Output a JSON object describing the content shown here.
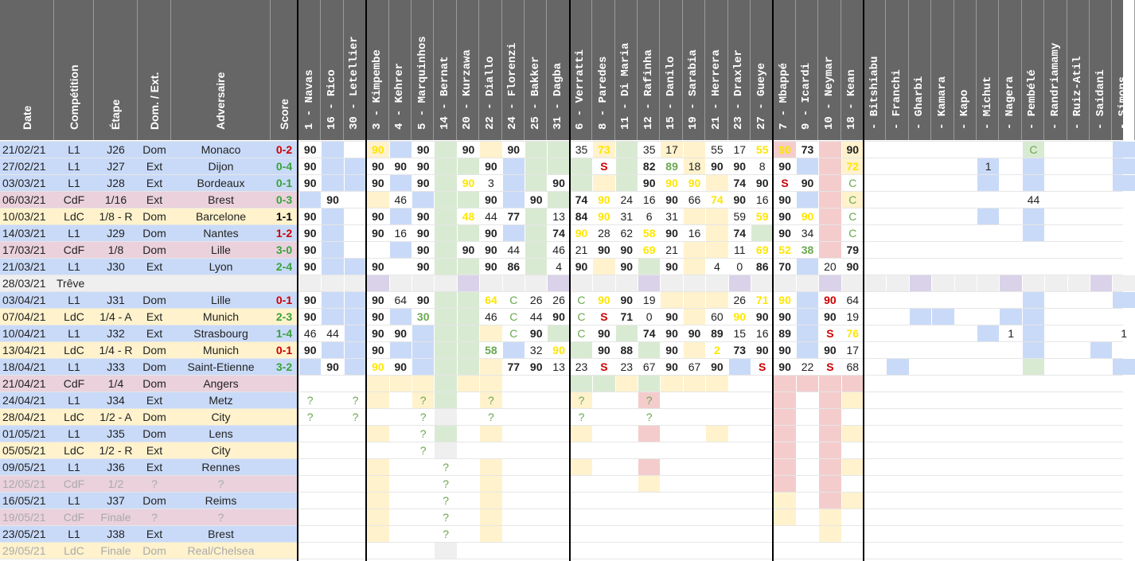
{
  "colors": {
    "header_bg": "#666666",
    "L1": "#c9daf8",
    "CdF": "#ead1dc",
    "LdC": "#fff2cc",
    "truce": "#efefef",
    "pos_blue": "#c9daf8",
    "pos_green": "#d9ead3",
    "pos_yellow": "#fff2cc",
    "pos_red": "#f4cccc",
    "pos_purple": "#d9d2e9",
    "score_win": "#38a33a",
    "score_loss": "#cc0000",
    "score_draw": "#000000",
    "min_yellow": "#ffe600",
    "min_green": "#6aa84f",
    "sub_red": "#cc0000",
    "future_grey": "#aaaaaa"
  },
  "columns": {
    "date": "Date",
    "competition": "Compétition",
    "stage": "Étape",
    "venue": "Dom. / Ext.",
    "opponent": "Adversaire",
    "score": "Score"
  },
  "players": [
    {
      "label": "1 - Navas",
      "group": "blue"
    },
    {
      "label": "16 - Rico",
      "group": "blue"
    },
    {
      "label": "30 - Letellier",
      "group": "blue"
    },
    {
      "label": "3 - Kimpembe",
      "group": "yellow"
    },
    {
      "label": "4 - Kehrer",
      "group": "blue"
    },
    {
      "label": "5 - Marquinhos",
      "group": "blue"
    },
    {
      "label": "14 - Bernat",
      "group": "green"
    },
    {
      "label": "20 - Kurzawa",
      "group": "green"
    },
    {
      "label": "22 - Diallo",
      "group": "yellow"
    },
    {
      "label": "24 - Florenzi",
      "group": "blue"
    },
    {
      "label": "25 - Bakker",
      "group": "green"
    },
    {
      "label": "31 - Dagba",
      "group": "green"
    },
    {
      "label": "6 - Verratti",
      "group": "green"
    },
    {
      "label": "8 - Paredes",
      "group": "yellow"
    },
    {
      "label": "11 - Di Maria",
      "group": "green"
    },
    {
      "label": "12 - Rafinha",
      "group": "green"
    },
    {
      "label": "15 - Danilo",
      "group": "yellow"
    },
    {
      "label": "19 - Sarabia",
      "group": "yellow"
    },
    {
      "label": "21 - Herrera",
      "group": "yellow"
    },
    {
      "label": "23 - Draxler",
      "group": "blue"
    },
    {
      "label": "27 - Gueye",
      "group": "green"
    },
    {
      "label": "7 - Mbappé",
      "group": "red"
    },
    {
      "label": "9 - Icardi",
      "group": "blue"
    },
    {
      "label": "10 - Neymar",
      "group": "red"
    },
    {
      "label": "18 - Kean",
      "group": "yellow"
    },
    {
      "label": "- Bitshiabu",
      "group": "blue"
    },
    {
      "label": "- Franchi",
      "group": "blue"
    },
    {
      "label": "- Gharbi",
      "group": "blue"
    },
    {
      "label": "- Kamara",
      "group": "blue"
    },
    {
      "label": "- Kapo",
      "group": "blue"
    },
    {
      "label": "- Michut",
      "group": "blue"
    },
    {
      "label": "- Nagera",
      "group": "blue"
    },
    {
      "label": "- Pembélé",
      "group": "green"
    },
    {
      "label": "- Randriamamy",
      "group": "blue"
    },
    {
      "label": "- Ruiz-Atil",
      "group": "blue"
    },
    {
      "label": "- Saidani",
      "group": "blue"
    },
    {
      "label": "- Simons",
      "group": "blue"
    }
  ],
  "matches": [
    {
      "date": "21/02/21",
      "comp": "L1",
      "stage": "J26",
      "venue": "Dom",
      "opp": "Monaco",
      "score": "0-2",
      "result": "loss",
      "future": false,
      "cells": {
        "0": "90",
        "3": "90y",
        "5": "90",
        "7": "90",
        "9": "90",
        "12": "35",
        "13": "73y",
        "15": "35",
        "16": "17",
        "18": "55",
        "19": "17",
        "20": "55y",
        "21": "90y",
        "22": "73",
        "24": "90",
        "32": "Cg"
      },
      "fills": {
        "1": "b",
        "3": "y",
        "4": "b",
        "6": "g",
        "8": "y",
        "10": "g",
        "11": "g",
        "13": "y",
        "14": "g",
        "16": "y",
        "17": "y",
        "21": "r",
        "23": "r",
        "24": "y",
        "32": "g",
        "36": "b"
      }
    },
    {
      "date": "27/02/21",
      "comp": "L1",
      "stage": "J27",
      "venue": "Ext",
      "opp": "Dijon",
      "score": "0-4",
      "result": "win",
      "future": false,
      "cells": {
        "0": "90",
        "3": "90",
        "4": "90",
        "5": "90",
        "8": "90",
        "13": "Sr",
        "15": "82",
        "16": "89g",
        "17": "18",
        "18": "90",
        "19": "90",
        "20": "8",
        "21": "90",
        "24": "72y",
        "30": "1"
      },
      "fills": {
        "1": "b",
        "2": "b",
        "6": "g",
        "7": "g",
        "9": "b",
        "10": "g",
        "11": "g",
        "12": "g",
        "14": "g",
        "17": "y",
        "22": "b",
        "23": "r",
        "24": "y",
        "30": "b",
        "32": "b",
        "36": "b"
      }
    },
    {
      "date": "03/03/21",
      "comp": "L1",
      "stage": "J28",
      "venue": "Ext",
      "opp": "Bordeaux",
      "score": "0-1",
      "result": "win",
      "future": false,
      "cells": {
        "0": "90",
        "3": "90",
        "5": "90",
        "7": "90y",
        "8": "3",
        "11": "90",
        "15": "90",
        "16": "90y",
        "17": "90y",
        "19": "74",
        "20": "90",
        "21": "Sr",
        "22": "90",
        "24": "Cg"
      },
      "fills": {
        "1": "b",
        "2": "b",
        "4": "b",
        "6": "g",
        "9": "b",
        "10": "g",
        "12": "g",
        "13": "y",
        "14": "g",
        "18": "y",
        "23": "r",
        "30": "b",
        "32": "b",
        "36": "b"
      }
    },
    {
      "date": "06/03/21",
      "comp": "CdF",
      "stage": "1/16",
      "venue": "Ext",
      "opp": "Brest",
      "score": "0-3",
      "result": "win",
      "future": false,
      "cells": {
        "1": "90",
        "4": "46",
        "8": "90",
        "10": "90",
        "12": "74",
        "13": "90y",
        "14": "24",
        "15": "16",
        "16": "90",
        "17": "66",
        "18": "74y",
        "19": "90",
        "20": "16",
        "21": "90",
        "24": "Cg",
        "32": "44"
      },
      "fills": {
        "0": "b",
        "3": "y",
        "5": "b",
        "6": "g",
        "7": "g",
        "9": "b",
        "11": "g",
        "22": "b",
        "23": "r",
        "24": "y"
      }
    },
    {
      "date": "10/03/21",
      "comp": "LdC",
      "stage": "1/8 - R",
      "venue": "Dom",
      "opp": "Barcelone",
      "score": "1-1",
      "result": "draw",
      "future": false,
      "cells": {
        "0": "90",
        "3": "90",
        "5": "90",
        "7": "48y",
        "8": "44",
        "9": "77",
        "11": "13",
        "12": "84",
        "13": "90y",
        "14": "31",
        "15": "6",
        "16": "31",
        "19": "59",
        "20": "59y",
        "21": "90",
        "22": "90y",
        "24": "Cg"
      },
      "fills": {
        "1": "b",
        "4": "b",
        "6": "g",
        "10": "g",
        "17": "y",
        "18": "y",
        "23": "r",
        "30": "b",
        "32": "b"
      }
    },
    {
      "date": "14/03/21",
      "comp": "L1",
      "stage": "J29",
      "venue": "Dom",
      "opp": "Nantes",
      "score": "1-2",
      "result": "loss",
      "future": false,
      "cells": {
        "0": "90",
        "3": "90",
        "4": "16",
        "5": "90",
        "8": "90",
        "11": "74",
        "12": "90y",
        "13": "28",
        "14": "62",
        "15": "58y",
        "16": "90",
        "17": "16",
        "19": "74",
        "21": "90",
        "22": "34",
        "24": "Cg"
      },
      "fills": {
        "1": "b",
        "6": "g",
        "7": "g",
        "9": "b",
        "10": "g",
        "18": "y",
        "20": "g",
        "23": "r",
        "32": "b"
      }
    },
    {
      "date": "17/03/21",
      "comp": "CdF",
      "stage": "1/8",
      "venue": "Dom",
      "opp": "Lille",
      "score": "3-0",
      "result": "win",
      "future": false,
      "cells": {
        "0": "90",
        "5": "90",
        "7": "90",
        "8": "90",
        "9": "44",
        "11": "46",
        "12": "21",
        "13": "90",
        "14": "90",
        "15": "69y",
        "16": "21",
        "19": "11",
        "20": "69y",
        "21": "52y",
        "22": "38g",
        "24": "79"
      },
      "fills": {
        "1": "b",
        "4": "b",
        "6": "g",
        "10": "g",
        "17": "y",
        "18": "y",
        "23": "r"
      }
    },
    {
      "date": "21/03/21",
      "comp": "L1",
      "stage": "J30",
      "venue": "Ext",
      "opp": "Lyon",
      "score": "2-4",
      "result": "win",
      "future": false,
      "cells": {
        "0": "90",
        "3": "90",
        "5": "90",
        "8": "90",
        "9": "86",
        "11": "4",
        "12": "90",
        "14": "90",
        "16": "90",
        "18": "4",
        "19": "0",
        "20": "86",
        "21": "70",
        "23": "20",
        "24": "90"
      },
      "fills": {
        "1": "b",
        "2": "b",
        "6": "g",
        "7": "g",
        "10": "g",
        "13": "y",
        "15": "g",
        "17": "y",
        "22": "b"
      }
    },
    {
      "date": "28/03/21",
      "comp": "Trêve",
      "stage": "",
      "venue": "",
      "opp": "",
      "score": "",
      "result": "truce",
      "future": false,
      "cells": {},
      "fills": {}
    },
    {
      "date": "03/04/21",
      "comp": "L1",
      "stage": "J31",
      "venue": "Dom",
      "opp": "Lille",
      "score": "0-1",
      "result": "loss",
      "future": false,
      "cells": {
        "0": "90",
        "3": "90",
        "4": "64",
        "5": "90",
        "8": "64y",
        "9": "C",
        "10": "26",
        "11": "26",
        "12": "C",
        "13": "90y",
        "14": "90",
        "15": "19",
        "19": "26",
        "20": "71y",
        "21": "90y",
        "23": "90r",
        "24": "64"
      },
      "fills": {
        "1": "b",
        "2": "b",
        "6": "g",
        "7": "g",
        "16": "y",
        "17": "y",
        "18": "y",
        "22": "b",
        "32": "b",
        "36": "b"
      }
    },
    {
      "date": "07/04/21",
      "comp": "LdC",
      "stage": "1/4 - A",
      "venue": "Ext",
      "opp": "Munich",
      "score": "2-3",
      "result": "win",
      "future": false,
      "cells": {
        "0": "90",
        "3": "90",
        "5": "30g",
        "8": "46",
        "9": "C",
        "10": "44",
        "11": "90",
        "12": "C",
        "13": "Sr",
        "14": "71",
        "15": "0",
        "16": "90",
        "18": "60",
        "19": "90y",
        "20": "90",
        "21": "90",
        "23": "90",
        "24": "19"
      },
      "fills": {
        "1": "b",
        "2": "b",
        "4": "b",
        "6": "g",
        "7": "g",
        "17": "y",
        "22": "b",
        "27": "b",
        "28": "b",
        "31": "b",
        "32": "b"
      }
    },
    {
      "date": "10/04/21",
      "comp": "L1",
      "stage": "J32",
      "venue": "Ext",
      "opp": "Strasbourg",
      "score": "1-4",
      "result": "win",
      "future": false,
      "cells": {
        "0": "46",
        "1": "44",
        "3": "90",
        "4": "90",
        "9": "C",
        "10": "90",
        "12": "C",
        "13": "90",
        "15": "74",
        "16": "90",
        "17": "90",
        "18": "89",
        "19": "15",
        "20": "16",
        "21": "89",
        "23": "Sr",
        "24": "76y",
        "31": "1",
        "36": "1"
      },
      "fills": {
        "2": "b",
        "5": "b",
        "6": "g",
        "7": "g",
        "8": "y",
        "11": "g",
        "14": "g",
        "22": "b",
        "30": "b",
        "32": "b"
      }
    },
    {
      "date": "13/04/21",
      "comp": "LdC",
      "stage": "1/4 - R",
      "venue": "Dom",
      "opp": "Munich",
      "score": "0-1",
      "result": "loss",
      "future": false,
      "cells": {
        "0": "90",
        "3": "90",
        "8": "58g",
        "10": "32",
        "11": "90y",
        "13": "90",
        "14": "88",
        "16": "90",
        "18": "2y",
        "19": "73",
        "20": "90",
        "21": "90",
        "23": "90",
        "24": "17"
      },
      "fills": {
        "1": "b",
        "2": "b",
        "4": "b",
        "5": "b",
        "6": "g",
        "7": "g",
        "9": "b",
        "12": "g",
        "15": "g",
        "17": "y",
        "22": "b",
        "32": "b",
        "35": "b"
      }
    },
    {
      "date": "18/04/21",
      "comp": "L1",
      "stage": "J33",
      "venue": "Dom",
      "opp": "Saint-Etienne",
      "score": "3-2",
      "result": "win",
      "future": false,
      "cells": {
        "1": "90",
        "3": "90y",
        "4": "90",
        "9": "77",
        "10": "90",
        "11": "13",
        "12": "23",
        "13": "Sr",
        "14": "23",
        "15": "67",
        "16": "90",
        "17": "67",
        "18": "90",
        "20": "Sr",
        "21": "90",
        "22": "22",
        "23": "Sr",
        "24": "68"
      },
      "fills": {
        "0": "b",
        "2": "b",
        "5": "b",
        "6": "g",
        "7": "g",
        "8": "y",
        "19": "b",
        "26": "b",
        "32": "g",
        "36": "b"
      }
    },
    {
      "date": "21/04/21",
      "comp": "CdF",
      "stage": "1/4",
      "venue": "Dom",
      "opp": "Angers",
      "score": "",
      "result": "none",
      "future": false,
      "cells": {},
      "fills": {
        "3": "y",
        "4": "y",
        "5": "y",
        "6": "g",
        "7": "y",
        "8": "y",
        "12": "g",
        "13": "g",
        "14": "y",
        "15": "g",
        "16": "y",
        "17": "y",
        "18": "y",
        "21": "r",
        "22": "r",
        "23": "r",
        "24": "r"
      }
    },
    {
      "date": "24/04/21",
      "comp": "L1",
      "stage": "J34",
      "venue": "Ext",
      "opp": "Metz",
      "score": "",
      "result": "none",
      "future": false,
      "cells": {
        "0": "?g",
        "2": "?g",
        "5": "?g",
        "8": "?g",
        "12": "?g",
        "15": "?g"
      },
      "fills": {
        "3": "y",
        "5": "y",
        "6": "g",
        "8": "y",
        "12": "y",
        "15": "r",
        "21": "r",
        "23": "r",
        "24": "y"
      }
    },
    {
      "date": "28/04/21",
      "comp": "LdC",
      "stage": "1/2 - A",
      "venue": "Dom",
      "opp": "City",
      "score": "",
      "result": "none",
      "future": false,
      "cells": {
        "0": "?g",
        "2": "?g",
        "5": "?g",
        "8": "?g",
        "12": "?g",
        "15": "?g"
      },
      "fills": {
        "6": "t",
        "21": "r",
        "23": "r"
      }
    },
    {
      "date": "01/05/21",
      "comp": "L1",
      "stage": "J35",
      "venue": "Dom",
      "opp": "Lens",
      "score": "",
      "result": "none",
      "future": false,
      "cells": {
        "5": "?g"
      },
      "fills": {
        "3": "y",
        "6": "g",
        "8": "y",
        "12": "y",
        "15": "r",
        "18": "y",
        "21": "r",
        "23": "r",
        "24": "y"
      }
    },
    {
      "date": "05/05/21",
      "comp": "LdC",
      "stage": "1/2 - R",
      "venue": "Ext",
      "opp": "City",
      "score": "",
      "result": "none",
      "future": false,
      "cells": {
        "5": "?g"
      },
      "fills": {
        "6": "t",
        "21": "r",
        "23": "r"
      }
    },
    {
      "date": "09/05/21",
      "comp": "L1",
      "stage": "J36",
      "venue": "Ext",
      "opp": "Rennes",
      "score": "",
      "result": "none",
      "future": false,
      "cells": {
        "6": "?g"
      },
      "fills": {
        "3": "y",
        "8": "y",
        "12": "y",
        "15": "r",
        "21": "r",
        "23": "r",
        "24": "y"
      }
    },
    {
      "date": "12/05/21",
      "comp": "CdF",
      "stage": "1/2",
      "venue": "?",
      "opp": "?",
      "score": "",
      "result": "none",
      "future": true,
      "cells": {
        "6": "?g"
      },
      "fills": {
        "3": "y",
        "8": "y",
        "15": "y",
        "21": "r",
        "23": "r"
      }
    },
    {
      "date": "16/05/21",
      "comp": "L1",
      "stage": "J37",
      "venue": "Dom",
      "opp": "Reims",
      "score": "",
      "result": "none",
      "future": false,
      "cells": {
        "6": "?g"
      },
      "fills": {
        "3": "y",
        "8": "y",
        "21": "y",
        "23": "r",
        "24": "y"
      }
    },
    {
      "date": "19/05/21",
      "comp": "CdF",
      "stage": "Finale",
      "venue": "?",
      "opp": "?",
      "score": "",
      "result": "none",
      "future": true,
      "cells": {
        "6": "?g"
      },
      "fills": {
        "3": "y",
        "8": "y",
        "21": "y",
        "23": "y"
      }
    },
    {
      "date": "23/05/21",
      "comp": "L1",
      "stage": "J38",
      "venue": "Ext",
      "opp": "Brest",
      "score": "",
      "result": "none",
      "future": false,
      "cells": {
        "6": "?g"
      },
      "fills": {
        "3": "y",
        "8": "y",
        "23": "y"
      }
    },
    {
      "date": "29/05/21",
      "comp": "LdC",
      "stage": "Finale",
      "venue": "Dom",
      "opp": "Real/Chelsea",
      "score": "",
      "result": "none",
      "future": true,
      "cells": {},
      "fills": {
        "6": "t"
      }
    }
  ]
}
